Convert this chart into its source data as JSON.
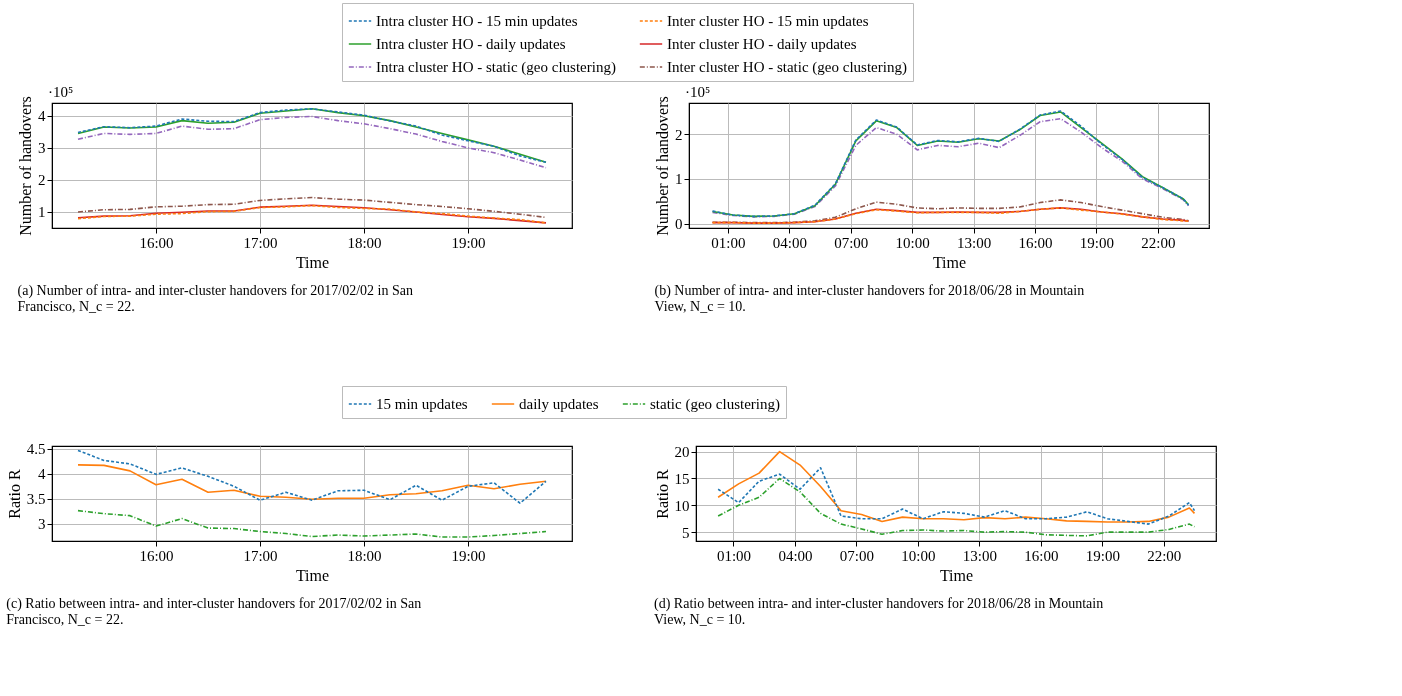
{
  "chart_data": [
    {
      "type": "line",
      "xlabel": "Time",
      "ylabel": "Number of handovers",
      "legend": "top",
      "grid": true,
      "x": [
        15.25,
        15.5,
        15.75,
        16,
        16.25,
        16.5,
        16.75,
        17,
        17.25,
        17.5,
        17.75,
        18,
        18.25,
        18.5,
        18.75,
        19,
        19.25,
        19.5,
        19.75
      ],
      "xlim": [
        15.0,
        20.0
      ],
      "ylim": [
        0.5,
        4.4
      ],
      "xticks": [
        {
          "value": 16,
          "label": "16:00"
        },
        {
          "value": 17,
          "label": "17:00"
        },
        {
          "value": 18,
          "label": "18:00"
        },
        {
          "value": 19,
          "label": "19:00"
        }
      ],
      "yticks": [
        1,
        2,
        3,
        4
      ],
      "annotations": [
        "·10⁵",
        "(a) Number of intra- and inter-cluster handovers for 2017/02/02 in San Francisco, N_c = 22."
      ],
      "series": [
        {
          "name": "Intra cluster HO - 15 min updates",
          "color": "#1f77b4",
          "line_style": "dashed",
          "values": [
            3.48,
            3.66,
            3.63,
            3.68,
            3.9,
            3.83,
            3.82,
            4.1,
            4.18,
            4.22,
            4.12,
            4.02,
            3.84,
            3.68,
            3.4,
            3.22,
            3.05,
            2.75,
            2.55
          ]
        },
        {
          "name": "Inter cluster HO - 15 min updates",
          "color": "#ff7f0e",
          "line_style": "dashed",
          "values": [
            0.79,
            0.86,
            0.87,
            0.93,
            0.95,
            1.01,
            1.02,
            1.14,
            1.16,
            1.2,
            1.14,
            1.11,
            1.09,
            1.0,
            0.95,
            0.87,
            0.81,
            0.76,
            0.66
          ]
        },
        {
          "name": "Intra cluster HO - daily updates",
          "color": "#2ca02c",
          "line_style": "solid",
          "values": [
            3.45,
            3.65,
            3.62,
            3.65,
            3.85,
            3.77,
            3.8,
            4.08,
            4.15,
            4.22,
            4.1,
            4.0,
            3.85,
            3.65,
            3.45,
            3.25,
            3.05,
            2.8,
            2.55
          ]
        },
        {
          "name": "Inter cluster HO - daily updates",
          "color": "#d62728",
          "line_style": "solid",
          "values": [
            0.82,
            0.87,
            0.88,
            0.96,
            0.99,
            1.03,
            1.03,
            1.15,
            1.18,
            1.21,
            1.17,
            1.13,
            1.07,
            1.0,
            0.92,
            0.85,
            0.8,
            0.73,
            0.66
          ]
        },
        {
          "name": "Intra cluster HO - static (geo clustering)",
          "color": "#9467bd",
          "line_style": "dashdot",
          "values": [
            3.27,
            3.45,
            3.42,
            3.45,
            3.68,
            3.58,
            3.6,
            3.88,
            3.95,
            3.98,
            3.85,
            3.75,
            3.6,
            3.43,
            3.2,
            3.0,
            2.85,
            2.62,
            2.38
          ]
        },
        {
          "name": "Inter cluster HO - static (geo clustering)",
          "color": "#8c564b",
          "line_style": "dashdot",
          "values": [
            1.0,
            1.07,
            1.08,
            1.16,
            1.18,
            1.23,
            1.24,
            1.36,
            1.41,
            1.45,
            1.4,
            1.37,
            1.3,
            1.23,
            1.17,
            1.1,
            1.02,
            0.93,
            0.83
          ]
        }
      ]
    },
    {
      "type": "line",
      "xlabel": "Time",
      "ylabel": "Number of handovers",
      "grid": true,
      "x": [
        0.25,
        1.25,
        2.25,
        3.25,
        4.25,
        5.25,
        6.25,
        7.25,
        8.25,
        9.25,
        10.25,
        11.25,
        12.25,
        13.25,
        14.25,
        15.25,
        16.25,
        17.25,
        18.25,
        19.25,
        20.25,
        21.25,
        22.25,
        23.25,
        23.5
      ],
      "xlim": [
        -0.9,
        24.5
      ],
      "ylim": [
        -0.1,
        2.7
      ],
      "xticks": [
        {
          "value": 1,
          "label": "01:00"
        },
        {
          "value": 4,
          "label": "04:00"
        },
        {
          "value": 7,
          "label": "07:00"
        },
        {
          "value": 10,
          "label": "10:00"
        },
        {
          "value": 13,
          "label": "13:00"
        },
        {
          "value": 16,
          "label": "16:00"
        },
        {
          "value": 19,
          "label": "19:00"
        },
        {
          "value": 22,
          "label": "22:00"
        }
      ],
      "yticks": [
        0,
        1,
        2
      ],
      "annotations": [
        "·10⁵",
        "(b) Number of intra- and inter-cluster handovers for 2018/06/28 in Mountain View, N_c = 10."
      ],
      "series": [
        {
          "name": "Intra cluster HO - 15 min updates",
          "color": "#1f77b4",
          "line_style": "dashed",
          "values": [
            0.28,
            0.19,
            0.16,
            0.17,
            0.22,
            0.41,
            0.89,
            1.87,
            2.32,
            2.16,
            1.76,
            1.86,
            1.83,
            1.91,
            1.84,
            2.11,
            2.43,
            2.52,
            2.18,
            1.78,
            1.44,
            1.03,
            0.8,
            0.55,
            0.41
          ]
        },
        {
          "name": "Inter cluster HO - 15 min updates",
          "color": "#ff7f0e",
          "line_style": "dashed",
          "values": [
            0.02,
            0.02,
            0.01,
            0.01,
            0.02,
            0.04,
            0.1,
            0.22,
            0.31,
            0.28,
            0.24,
            0.25,
            0.25,
            0.25,
            0.23,
            0.27,
            0.32,
            0.35,
            0.3,
            0.26,
            0.21,
            0.15,
            0.09,
            0.06,
            0.05
          ]
        },
        {
          "name": "Intra cluster HO - daily updates",
          "color": "#2ca02c",
          "line_style": "solid",
          "values": [
            0.27,
            0.19,
            0.16,
            0.17,
            0.22,
            0.4,
            0.88,
            1.85,
            2.3,
            2.15,
            1.75,
            1.85,
            1.82,
            1.9,
            1.85,
            2.1,
            2.42,
            2.5,
            2.15,
            1.8,
            1.45,
            1.05,
            0.8,
            0.55,
            0.42
          ]
        },
        {
          "name": "Inter cluster HO - daily updates",
          "color": "#d62728",
          "line_style": "solid",
          "values": [
            0.02,
            0.02,
            0.01,
            0.01,
            0.02,
            0.04,
            0.1,
            0.23,
            0.32,
            0.29,
            0.25,
            0.25,
            0.26,
            0.25,
            0.25,
            0.27,
            0.32,
            0.35,
            0.32,
            0.26,
            0.22,
            0.15,
            0.1,
            0.07,
            0.05
          ]
        },
        {
          "name": "Intra cluster HO - static (geo clustering)",
          "color": "#9467bd",
          "line_style": "dashdot",
          "values": [
            0.25,
            0.18,
            0.15,
            0.16,
            0.21,
            0.38,
            0.84,
            1.75,
            2.15,
            2.0,
            1.65,
            1.75,
            1.72,
            1.8,
            1.7,
            1.97,
            2.28,
            2.35,
            2.05,
            1.7,
            1.4,
            1.0,
            0.78,
            0.53,
            0.4
          ]
        },
        {
          "name": "Inter cluster HO - static (geo clustering)",
          "color": "#8c564b",
          "line_style": "dashdot",
          "values": [
            0.03,
            0.03,
            0.02,
            0.02,
            0.03,
            0.06,
            0.14,
            0.33,
            0.48,
            0.43,
            0.35,
            0.33,
            0.35,
            0.34,
            0.34,
            0.37,
            0.47,
            0.53,
            0.47,
            0.38,
            0.3,
            0.22,
            0.14,
            0.09,
            0.06
          ]
        }
      ]
    },
    {
      "type": "line",
      "xlabel": "Time",
      "ylabel": "Ratio R",
      "legend": "top",
      "grid": true,
      "x": [
        15.25,
        15.5,
        15.75,
        16,
        16.25,
        16.5,
        16.75,
        17,
        17.25,
        17.5,
        17.75,
        18,
        18.25,
        18.5,
        18.75,
        19,
        19.25,
        19.5,
        19.75
      ],
      "xlim": [
        15.0,
        20.0
      ],
      "ylim": [
        2.65,
        4.56
      ],
      "xticks": [
        {
          "value": 16,
          "label": "16:00"
        },
        {
          "value": 17,
          "label": "17:00"
        },
        {
          "value": 18,
          "label": "18:00"
        },
        {
          "value": 19,
          "label": "19:00"
        }
      ],
      "yticks": [
        3,
        3.5,
        4,
        4.5
      ],
      "annotations": [
        "(c) Ratio between intra- and inter-cluster handovers for 2017/02/02 in San Francisco, N_c = 22."
      ],
      "series": [
        {
          "name": "15 min updates",
          "color": "#1f77b4",
          "line_style": "dashed",
          "values": [
            4.47,
            4.27,
            4.2,
            3.99,
            4.12,
            3.95,
            3.75,
            3.47,
            3.63,
            3.47,
            3.66,
            3.67,
            3.48,
            3.77,
            3.47,
            3.75,
            3.82,
            3.41,
            3.85
          ]
        },
        {
          "name": "daily updates",
          "color": "#ff7f0e",
          "line_style": "solid",
          "values": [
            4.18,
            4.17,
            4.06,
            3.78,
            3.89,
            3.63,
            3.67,
            3.55,
            3.53,
            3.49,
            3.51,
            3.51,
            3.58,
            3.6,
            3.66,
            3.77,
            3.7,
            3.79,
            3.85
          ]
        },
        {
          "name": "static (geo clustering)",
          "color": "#2ca02c",
          "line_style": "dashdot",
          "values": [
            3.26,
            3.2,
            3.16,
            2.95,
            3.1,
            2.91,
            2.9,
            2.84,
            2.8,
            2.74,
            2.77,
            2.75,
            2.77,
            2.79,
            2.73,
            2.73,
            2.76,
            2.8,
            2.84
          ]
        }
      ]
    },
    {
      "type": "line",
      "xlabel": "Time",
      "ylabel": "Ratio R",
      "grid": true,
      "x": [
        0.25,
        1.25,
        2.25,
        3.25,
        4.25,
        5.25,
        6.25,
        7.25,
        8.25,
        9.25,
        10.25,
        11.25,
        12.25,
        13.25,
        14.25,
        15.25,
        16.25,
        17.25,
        18.25,
        19.25,
        20.25,
        21.25,
        22.25,
        23.25,
        23.5
      ],
      "xlim": [
        -0.83,
        24.55
      ],
      "ylim": [
        3.35,
        21.05
      ],
      "xticks": [
        {
          "value": 1,
          "label": "01:00"
        },
        {
          "value": 4,
          "label": "04:00"
        },
        {
          "value": 7,
          "label": "07:00"
        },
        {
          "value": 10,
          "label": "10:00"
        },
        {
          "value": 13,
          "label": "13:00"
        },
        {
          "value": 16,
          "label": "16:00"
        },
        {
          "value": 19,
          "label": "19:00"
        },
        {
          "value": 22,
          "label": "22:00"
        }
      ],
      "yticks": [
        5,
        10,
        15,
        20
      ],
      "annotations": [
        "(d) Ratio between intra- and inter-cluster handovers for 2018/06/28 in Mountain View, N_c = 10."
      ],
      "series": [
        {
          "name": "15 min updates",
          "color": "#1f77b4",
          "line_style": "dashed",
          "values": [
            13.0,
            10.5,
            14.5,
            15.8,
            13.0,
            17.0,
            8.0,
            7.5,
            7.5,
            9.3,
            7.5,
            8.8,
            8.5,
            7.8,
            9.0,
            7.5,
            7.5,
            7.8,
            8.8,
            7.5,
            7.0,
            6.5,
            8.0,
            10.5,
            9.0
          ]
        },
        {
          "name": "daily updates",
          "color": "#ff7f0e",
          "line_style": "solid",
          "values": [
            11.5,
            14.0,
            16.0,
            20.0,
            17.5,
            13.5,
            9.0,
            8.3,
            7.0,
            7.8,
            7.5,
            7.5,
            7.3,
            7.7,
            7.5,
            7.8,
            7.5,
            7.1,
            7.0,
            6.9,
            6.9,
            7.0,
            7.8,
            9.5,
            8.5
          ]
        },
        {
          "name": "static (geo clustering)",
          "color": "#2ca02c",
          "line_style": "dashdot",
          "values": [
            8.0,
            10.0,
            11.5,
            15.0,
            12.5,
            8.5,
            6.5,
            5.6,
            4.6,
            5.3,
            5.4,
            5.2,
            5.3,
            5.0,
            5.1,
            5.0,
            4.5,
            4.4,
            4.3,
            5.0,
            5.0,
            5.0,
            5.5,
            6.5,
            6.0
          ]
        }
      ]
    }
  ]
}
